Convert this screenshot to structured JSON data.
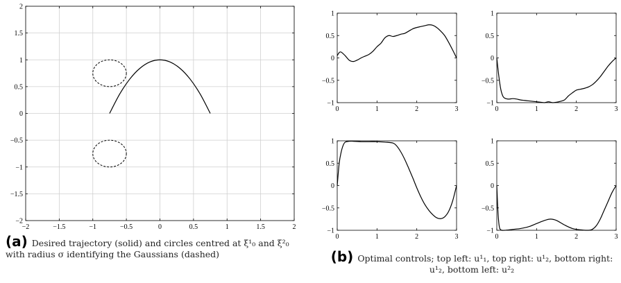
{
  "captions": {
    "a_label": "(a)",
    "a_text": "Desired trajectory (solid) and circles centred at ξ¹₀ and ξ²₀ with radius σ identifying the Gaussians (dashed)",
    "b_label": "(b)",
    "b_text": "Optimal controls; top left: u¹₁, top right: u¹₂, bottom right: u¹₂, bottom left: u²₂"
  },
  "chart_data": [
    {
      "id": "a",
      "type": "line",
      "grid": true,
      "xlim": [
        -2,
        2
      ],
      "ylim": [
        -2,
        2
      ],
      "xticks": [
        "−2",
        "−1.5",
        "−1",
        "−0.5",
        "0",
        "0.5",
        "1",
        "1.5",
        "2"
      ],
      "xtick_values": [
        -2,
        -1.5,
        -1,
        -0.5,
        0,
        0.5,
        1,
        1.5,
        2
      ],
      "yticks": [
        "−2",
        "−1.5",
        "−1",
        "−0.5",
        "0",
        "0.5",
        "1",
        "1.5",
        "2"
      ],
      "ytick_values": [
        -2,
        -1.5,
        -1,
        -0.5,
        0,
        0.5,
        1,
        1.5,
        2
      ],
      "series": [
        {
          "style": "solid",
          "x": [
            -0.75,
            -0.6,
            -0.45,
            -0.3,
            -0.15,
            0,
            0.15,
            0.3,
            0.45,
            0.6,
            0.75
          ],
          "y": [
            0,
            0.36,
            0.64,
            0.84,
            0.96,
            1,
            0.96,
            0.84,
            0.64,
            0.36,
            0
          ]
        }
      ],
      "circles": [
        {
          "style": "dashed",
          "cx": -0.75,
          "cy": 0.75,
          "r": 0.25
        },
        {
          "style": "dashed",
          "cx": -0.75,
          "cy": -0.75,
          "r": 0.25
        }
      ]
    },
    {
      "id": "b-top-left",
      "type": "line",
      "xlim": [
        0,
        3
      ],
      "ylim": [
        -1,
        1
      ],
      "xticks": [
        "0",
        "1",
        "2",
        "3"
      ],
      "xtick_values": [
        0,
        1,
        2,
        3
      ],
      "yticks": [
        "−1",
        "−0.5",
        "0",
        "0.5",
        "1"
      ],
      "ytick_values": [
        -1,
        -0.5,
        0,
        0.5,
        1
      ],
      "series": [
        {
          "x": [
            0,
            0.05,
            0.1,
            0.2,
            0.3,
            0.4,
            0.5,
            0.6,
            0.7,
            0.8,
            0.9,
            1.0,
            1.1,
            1.2,
            1.3,
            1.4,
            1.5,
            1.6,
            1.7,
            1.8,
            1.9,
            2.0,
            2.1,
            2.2,
            2.3,
            2.4,
            2.5,
            2.6,
            2.7,
            2.8,
            2.9,
            3.0
          ],
          "y": [
            0.05,
            0.12,
            0.13,
            0.05,
            -0.05,
            -0.08,
            -0.05,
            0,
            0.04,
            0.08,
            0.15,
            0.25,
            0.33,
            0.45,
            0.5,
            0.48,
            0.5,
            0.53,
            0.55,
            0.6,
            0.65,
            0.68,
            0.7,
            0.72,
            0.74,
            0.73,
            0.68,
            0.6,
            0.5,
            0.35,
            0.18,
            0
          ]
        }
      ]
    },
    {
      "id": "b-top-right",
      "type": "line",
      "xlim": [
        0,
        3
      ],
      "ylim": [
        -1,
        1
      ],
      "xticks": [
        "0",
        "1",
        "2",
        "3"
      ],
      "xtick_values": [
        0,
        1,
        2,
        3
      ],
      "yticks": [
        "−1",
        "−0.5",
        "0",
        "0.5",
        "1"
      ],
      "ytick_values": [
        -1,
        -0.5,
        0,
        0.5,
        1
      ],
      "series": [
        {
          "x": [
            0,
            0.05,
            0.1,
            0.15,
            0.2,
            0.3,
            0.4,
            0.5,
            0.6,
            0.7,
            0.8,
            0.9,
            1.0,
            1.1,
            1.2,
            1.3,
            1.4,
            1.5,
            1.6,
            1.7,
            1.8,
            1.9,
            2.0,
            2.1,
            2.2,
            2.3,
            2.4,
            2.5,
            2.6,
            2.7,
            2.8,
            2.9,
            3.0
          ],
          "y": [
            0,
            -0.4,
            -0.7,
            -0.85,
            -0.9,
            -0.92,
            -0.91,
            -0.92,
            -0.94,
            -0.95,
            -0.96,
            -0.97,
            -0.98,
            -0.99,
            -1.0,
            -0.98,
            -1.0,
            -0.99,
            -0.97,
            -0.94,
            -0.85,
            -0.78,
            -0.72,
            -0.7,
            -0.68,
            -0.65,
            -0.6,
            -0.52,
            -0.42,
            -0.3,
            -0.18,
            -0.08,
            0
          ]
        }
      ]
    },
    {
      "id": "b-bottom-left",
      "type": "line",
      "xlim": [
        0,
        3
      ],
      "ylim": [
        -1,
        1
      ],
      "xticks": [
        "0",
        "1",
        "2",
        "3"
      ],
      "xtick_values": [
        0,
        1,
        2,
        3
      ],
      "yticks": [
        "−1",
        "−0.5",
        "0",
        "0.5",
        "1"
      ],
      "ytick_values": [
        -1,
        -0.5,
        0,
        0.5,
        1
      ],
      "series": [
        {
          "x": [
            0,
            0.05,
            0.1,
            0.15,
            0.2,
            0.3,
            0.4,
            0.6,
            0.8,
            1.0,
            1.2,
            1.4,
            1.5,
            1.6,
            1.7,
            1.8,
            1.9,
            2.0,
            2.1,
            2.2,
            2.3,
            2.4,
            2.5,
            2.6,
            2.7,
            2.8,
            2.9,
            3.0
          ],
          "y": [
            0,
            0.5,
            0.75,
            0.9,
            0.97,
            0.99,
            0.99,
            0.98,
            0.98,
            0.98,
            0.97,
            0.95,
            0.88,
            0.75,
            0.58,
            0.38,
            0.17,
            -0.05,
            -0.25,
            -0.42,
            -0.55,
            -0.65,
            -0.72,
            -0.74,
            -0.7,
            -0.58,
            -0.35,
            0
          ]
        }
      ]
    },
    {
      "id": "b-bottom-right",
      "type": "line",
      "xlim": [
        0,
        3
      ],
      "ylim": [
        -1,
        1
      ],
      "xticks": [
        "0",
        "1",
        "2",
        "3"
      ],
      "xtick_values": [
        0,
        1,
        2,
        3
      ],
      "yticks": [
        "−1",
        "−0.5",
        "0",
        "0.5",
        "1"
      ],
      "ytick_values": [
        -1,
        -0.5,
        0,
        0.5,
        1
      ],
      "series": [
        {
          "x": [
            0,
            0.03,
            0.06,
            0.1,
            0.2,
            0.4,
            0.6,
            0.8,
            1.0,
            1.2,
            1.35,
            1.5,
            1.7,
            1.9,
            2.1,
            2.3,
            2.4,
            2.5,
            2.6,
            2.7,
            2.8,
            2.9,
            3.0
          ],
          "y": [
            0,
            -0.6,
            -0.9,
            -0.99,
            -1.0,
            -0.98,
            -0.96,
            -0.92,
            -0.85,
            -0.78,
            -0.75,
            -0.78,
            -0.88,
            -0.96,
            -0.99,
            -1.0,
            -0.98,
            -0.9,
            -0.75,
            -0.55,
            -0.35,
            -0.15,
            0
          ]
        }
      ]
    }
  ]
}
